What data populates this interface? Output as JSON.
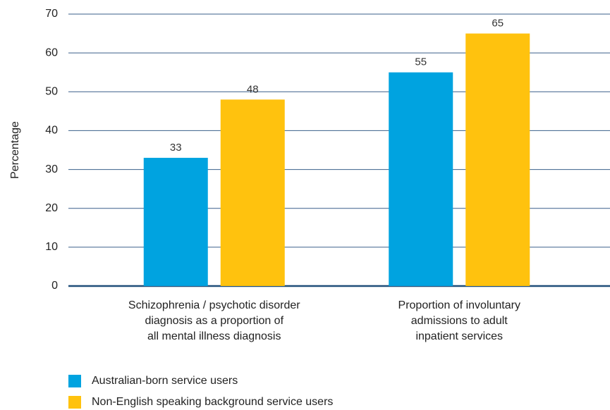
{
  "chart_data": {
    "type": "bar",
    "y_label": "Percentage",
    "categories": [
      "Schizophrenia / psychotic disorder\ndiagnosis as a proportion of\nall mental illness diagnosis",
      "Proportion of involuntary\nadmissions to adult\ninpatient services"
    ],
    "series": [
      {
        "name": "Australian-born service users",
        "color": "#00a3e0",
        "values": [
          33,
          55
        ]
      },
      {
        "name": "Non-English speaking background service users",
        "color": "#ffc20e",
        "values": [
          48,
          65
        ]
      }
    ],
    "ylim": [
      0,
      70
    ],
    "yticks": [
      0,
      10,
      20,
      30,
      40,
      50,
      60,
      70
    ],
    "grid": true,
    "legend": "bottom-left"
  }
}
